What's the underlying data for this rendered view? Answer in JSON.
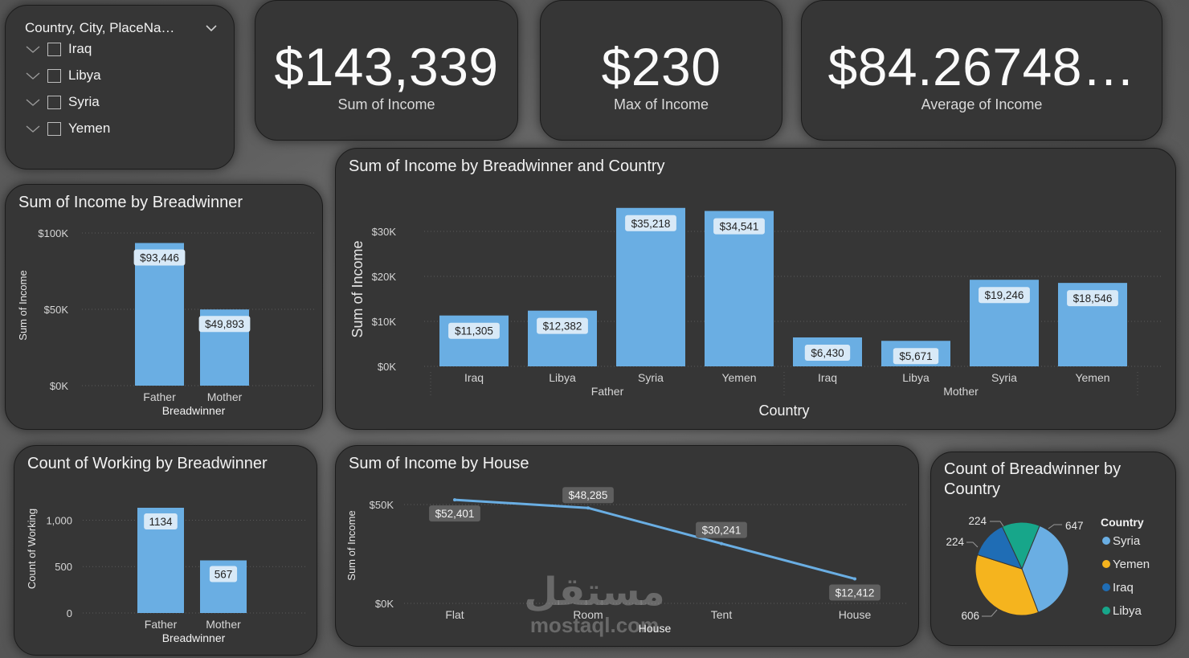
{
  "slicer": {
    "title": "Country, City, PlaceNa…",
    "items": [
      {
        "label": "Iraq"
      },
      {
        "label": "Libya"
      },
      {
        "label": "Syria"
      },
      {
        "label": "Yemen"
      }
    ]
  },
  "cards": [
    {
      "value": "$143,339",
      "label": "Sum of Income"
    },
    {
      "value": "$230",
      "label": "Max of Income"
    },
    {
      "value": "$84.26748…",
      "label": "Average of Income"
    }
  ],
  "colors": {
    "bar": "#6aaee3",
    "syria": "#6aaee3",
    "yemen": "#f5b41e",
    "iraq": "#1f6db5",
    "libya": "#17a68a",
    "panel": "#363636"
  },
  "watermark": {
    "arabic": "مستقل",
    "latin": "mostaql.com"
  },
  "chart_data": [
    {
      "id": "breadwinner",
      "type": "bar",
      "title": "Sum of Income by Breadwinner",
      "xlabel": "Breadwinner",
      "ylabel": "Sum of Income",
      "categories": [
        "Father",
        "Mother"
      ],
      "values": [
        93446,
        49893
      ],
      "data_labels": [
        "$93,446",
        "$49,893"
      ],
      "yticks": [
        0,
        50000,
        100000
      ],
      "ytick_labels": [
        "$0K",
        "$50K",
        "$100K"
      ],
      "ylim": [
        0,
        100000
      ]
    },
    {
      "id": "country",
      "type": "bar",
      "title": "Sum of Income by Breadwinner and Country",
      "xlabel": "Country",
      "ylabel": "Sum of Income",
      "groups": [
        "Father",
        "Mother"
      ],
      "categories": [
        "Iraq",
        "Libya",
        "Syria",
        "Yemen",
        "Iraq",
        "Libya",
        "Syria",
        "Yemen"
      ],
      "values": [
        11305,
        12382,
        35218,
        34541,
        6430,
        5671,
        19246,
        18546
      ],
      "data_labels": [
        "$11,305",
        "$12,382",
        "$35,218",
        "$34,541",
        "$6,430",
        "$5,671",
        "$19,246",
        "$18,546"
      ],
      "yticks": [
        0,
        10000,
        20000,
        30000
      ],
      "ytick_labels": [
        "$0K",
        "$10K",
        "$20K",
        "$30K"
      ],
      "ylim": [
        0,
        35218
      ]
    },
    {
      "id": "working",
      "type": "bar",
      "title": "Count of Working by Breadwinner",
      "xlabel": "Breadwinner",
      "ylabel": "Count of Working",
      "categories": [
        "Father",
        "Mother"
      ],
      "values": [
        1134,
        567
      ],
      "data_labels": [
        "1134",
        "567"
      ],
      "yticks": [
        0,
        500,
        1000
      ],
      "ytick_labels": [
        "0",
        "500",
        "1,000"
      ],
      "ylim": [
        0,
        1134
      ]
    },
    {
      "id": "house",
      "type": "line",
      "title": "Sum of Income by House",
      "xlabel": "House",
      "ylabel": "Sum of Income",
      "categories": [
        "Flat",
        "Room",
        "Tent",
        "House"
      ],
      "values": [
        52401,
        48285,
        30241,
        12412
      ],
      "data_labels": [
        "$52,401",
        "$48,285",
        "$30,241",
        "$12,412"
      ],
      "yticks": [
        0,
        50000
      ],
      "ytick_labels": [
        "$0K",
        "$50K"
      ],
      "ylim": [
        0,
        52401
      ]
    },
    {
      "id": "pie",
      "type": "pie",
      "title": "Count of Breadwinner by Country",
      "legend_title": "Country",
      "categories": [
        "Syria",
        "Yemen",
        "Iraq",
        "Libya"
      ],
      "values": [
        647,
        606,
        224,
        224
      ],
      "data_labels": [
        "647",
        "606",
        "224",
        "224"
      ]
    }
  ]
}
